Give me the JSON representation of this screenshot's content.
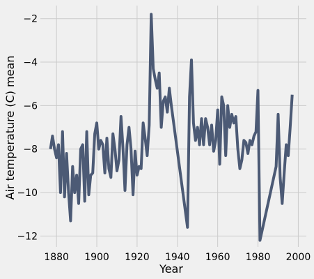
{
  "chart_data": {
    "type": "line",
    "title": "",
    "xlabel": "Year",
    "ylabel": "Air temperature (C) mean",
    "xlim": [
      1872,
      2004
    ],
    "ylim": [
      -12.5,
      -1.4
    ],
    "xticks": [
      1880,
      1900,
      1920,
      1940,
      1960,
      1980,
      2000
    ],
    "yticks": [
      -12,
      -10,
      -8,
      -6,
      -4,
      -2
    ],
    "grid": true,
    "colors": {
      "background": "#f0f0f0",
      "grid": "#cbcbcb",
      "line": "#4c5a75"
    },
    "series": [
      {
        "x": [
          1877,
          1878,
          1879,
          1880,
          1881,
          1882,
          1883,
          1884,
          1885,
          1886,
          1887,
          1888,
          1889,
          1890,
          1891,
          1892,
          1893,
          1894,
          1895,
          1896,
          1897,
          1898,
          1899,
          1900,
          1901,
          1902,
          1903,
          1904,
          1905,
          1906,
          1907,
          1908,
          1909,
          1910,
          1911,
          1912,
          1913,
          1914,
          1915,
          1916,
          1917,
          1918,
          1919,
          1920,
          1921,
          1922,
          1923,
          1924,
          1925,
          1926,
          1927,
          1928,
          1929,
          1930,
          1931,
          1932,
          1933,
          1934,
          1935,
          1936,
          1937,
          1945,
          1946,
          1947,
          1948,
          1949,
          1950,
          1951,
          1952,
          1953,
          1954,
          1955,
          1956,
          1957,
          1958,
          1959,
          1960,
          1961,
          1962,
          1963,
          1964,
          1965,
          1966,
          1967,
          1968,
          1969,
          1970,
          1971,
          1972,
          1973,
          1974,
          1975,
          1976,
          1977,
          1978,
          1979,
          1980,
          1981,
          1989,
          1990,
          1991,
          1992,
          1993,
          1994,
          1995,
          1996,
          1997
        ],
        "y": [
          -8.0,
          -7.4,
          -8.0,
          -8.4,
          -7.8,
          -10.0,
          -7.2,
          -10.2,
          -8.2,
          -10.0,
          -11.3,
          -8.8,
          -10.0,
          -9.2,
          -10.5,
          -8.0,
          -7.8,
          -10.4,
          -7.2,
          -10.1,
          -9.2,
          -9.1,
          -7.3,
          -6.8,
          -8.0,
          -7.6,
          -7.8,
          -9.1,
          -7.5,
          -8.9,
          -9.3,
          -7.3,
          -8.0,
          -9.0,
          -8.5,
          -6.5,
          -8.0,
          -9.9,
          -7.8,
          -7.0,
          -8.0,
          -10.1,
          -8.1,
          -9.2,
          -8.8,
          -8.9,
          -6.8,
          -7.5,
          -8.3,
          -6.9,
          -1.8,
          -4.3,
          -4.8,
          -5.2,
          -4.5,
          -7.0,
          -5.8,
          -5.6,
          -6.3,
          -5.2,
          -6.0,
          -11.6,
          -5.6,
          -3.9,
          -6.8,
          -7.6,
          -7.0,
          -7.8,
          -6.6,
          -7.8,
          -6.6,
          -7.0,
          -7.8,
          -6.9,
          -8.1,
          -7.6,
          -6.2,
          -8.7,
          -5.6,
          -6.0,
          -8.3,
          -6.0,
          -7.0,
          -6.4,
          -6.8,
          -6.5,
          -8.0,
          -8.9,
          -8.5,
          -7.6,
          -7.7,
          -8.2,
          -7.6,
          -7.8,
          -7.4,
          -7.2,
          -5.3,
          -12.2,
          -8.8,
          -6.4,
          -9.3,
          -10.5,
          -9.1,
          -7.8,
          -8.3,
          -7.0,
          -5.5
        ]
      }
    ]
  }
}
